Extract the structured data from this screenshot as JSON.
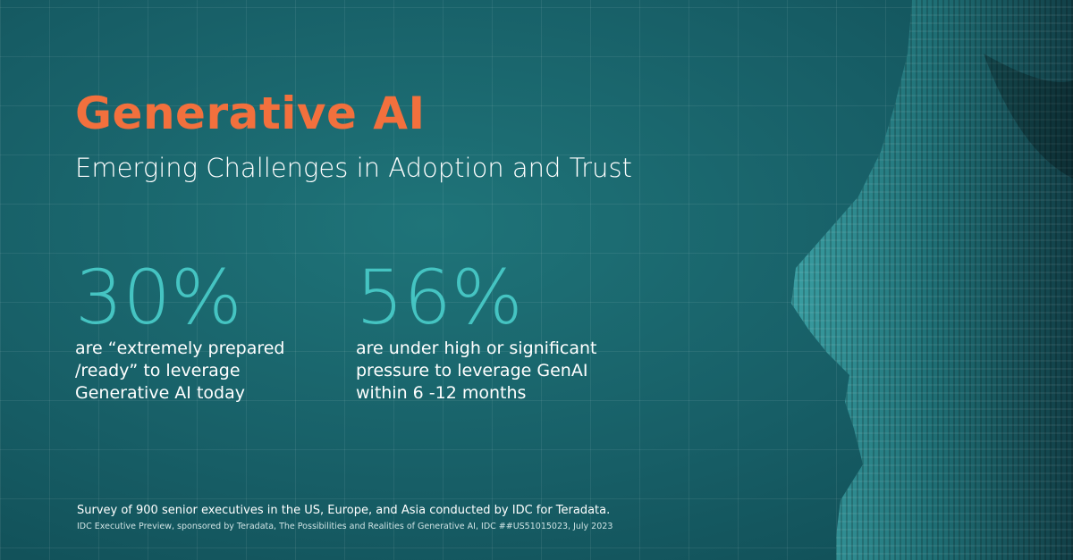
{
  "header": {
    "title": "Generative AI",
    "subtitle": "Emerging Challenges in Adoption and Trust"
  },
  "stats": [
    {
      "value": "30%",
      "lines": [
        "are “extremely prepared",
        "/ready” to leverage",
        "Generative AI today"
      ]
    },
    {
      "value": "56%",
      "lines": [
        "are under high or significant",
        "pressure to leverage GenAI",
        "within 6 -12 months"
      ]
    }
  ],
  "footer": {
    "note": "Survey of 900 senior executives in the US, Europe, and Asia conducted by IDC for Teradata.",
    "source": "IDC Executive Preview, sponsored by Teradata, The Possibilities and Realities of Generative AI, IDC ##US51015023, July 2023"
  }
}
